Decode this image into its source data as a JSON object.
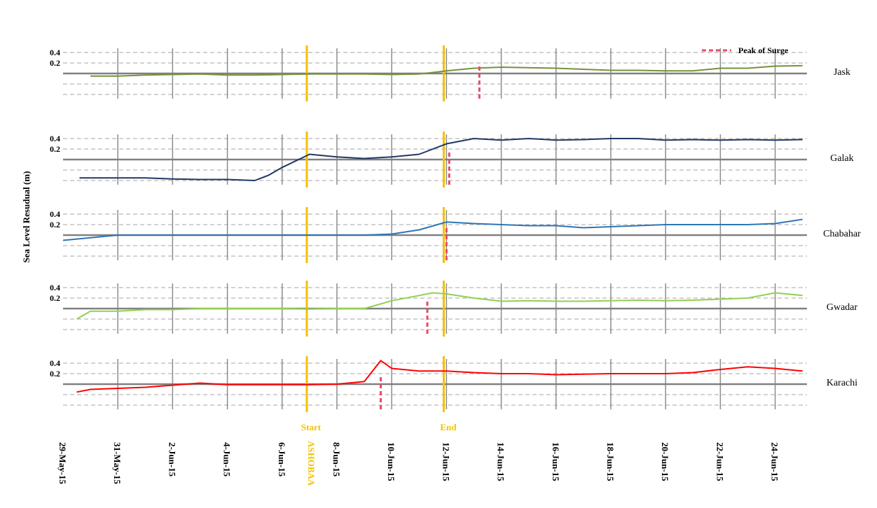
{
  "chart_data": {
    "type": "line",
    "title": "",
    "ylabel": "Sea Level Resudual (m)",
    "xlabel": "",
    "x_tick_labels": [
      "29-May-15",
      "31-May-15",
      "2-Jun-15",
      "4-Jun-15",
      "6-Jun-15",
      "8-Jun-15",
      "10-Jun-15",
      "12-Jun-15",
      "14-Jun-15",
      "16-Jun-15",
      "18-Jun-15",
      "20-Jun-15",
      "22-Jun-15",
      "24-Jun-15"
    ],
    "y_tick_labels": [
      "0.4",
      "0.2"
    ],
    "x_range_days": [
      0,
      27
    ],
    "grid": true,
    "legend": {
      "label": "Peak of Surge",
      "placement": "top-right"
    },
    "events": {
      "name": "ASHOBAA",
      "start_label": "Start",
      "end_label": "End",
      "start_day": 8.9,
      "end_day": 13.9
    },
    "series": [
      {
        "name": "Jask",
        "color": "#76923c",
        "peak_day": 15.2,
        "x": [
          1,
          2,
          3,
          4,
          5,
          6,
          7,
          8,
          9,
          10,
          11,
          12,
          13,
          14,
          15,
          16,
          17,
          18,
          19,
          20,
          21,
          22,
          23,
          24,
          25,
          26,
          27
        ],
        "values": [
          -0.05,
          -0.05,
          -0.03,
          -0.02,
          -0.01,
          -0.03,
          -0.03,
          -0.02,
          -0.01,
          -0.01,
          -0.01,
          -0.02,
          -0.01,
          0.05,
          0.1,
          0.12,
          0.11,
          0.1,
          0.08,
          0.06,
          0.06,
          0.05,
          0.05,
          0.1,
          0.1,
          0.14,
          0.15
        ]
      },
      {
        "name": "Galak",
        "color": "#1f3864",
        "peak_day": 14.1,
        "x": [
          0.6,
          2,
          3,
          4,
          5,
          6,
          7,
          7.5,
          8,
          9,
          10,
          11,
          12,
          13,
          13.5,
          14,
          15,
          16,
          17,
          18,
          19,
          20,
          21,
          22,
          23,
          24,
          25,
          26,
          27
        ],
        "values": [
          -0.35,
          -0.35,
          -0.35,
          -0.37,
          -0.38,
          -0.38,
          -0.4,
          -0.3,
          -0.15,
          0.1,
          0.05,
          0.02,
          0.05,
          0.1,
          0.2,
          0.3,
          0.4,
          0.37,
          0.4,
          0.37,
          0.38,
          0.4,
          0.4,
          0.37,
          0.38,
          0.37,
          0.38,
          0.37,
          0.38
        ]
      },
      {
        "name": "Chabahar",
        "color": "#2e75b6",
        "peak_day": 14.0,
        "x": [
          0,
          1,
          2,
          3,
          4,
          5,
          6,
          7,
          8,
          9,
          10,
          11,
          12,
          13,
          14,
          15,
          16,
          17,
          18,
          19,
          20,
          21,
          22,
          23,
          24,
          25,
          26,
          27
        ],
        "values": [
          -0.1,
          -0.05,
          0.0,
          0.0,
          0.0,
          0.0,
          0.0,
          0.0,
          0.0,
          0.0,
          0.0,
          0.0,
          0.02,
          0.1,
          0.25,
          0.22,
          0.2,
          0.18,
          0.18,
          0.14,
          0.16,
          0.18,
          0.2,
          0.2,
          0.2,
          0.2,
          0.22,
          0.3
        ]
      },
      {
        "name": "Gwadar",
        "color": "#92d050",
        "peak_day": 13.3,
        "x": [
          0.5,
          1,
          2,
          3,
          4,
          5,
          6,
          7,
          8,
          9,
          10,
          11,
          12,
          13,
          13.5,
          14,
          15,
          16,
          17,
          18,
          19,
          20,
          21,
          22,
          23,
          24,
          25,
          26,
          27
        ],
        "values": [
          -0.2,
          -0.05,
          -0.05,
          -0.02,
          -0.02,
          0.0,
          0.0,
          0.0,
          0.0,
          -0.01,
          0.0,
          0.0,
          0.15,
          0.25,
          0.3,
          0.28,
          0.2,
          0.14,
          0.15,
          0.14,
          0.14,
          0.15,
          0.16,
          0.15,
          0.16,
          0.18,
          0.2,
          0.3,
          0.25
        ]
      },
      {
        "name": "Karachi",
        "color": "#ff0000",
        "peak_day": 11.6,
        "x": [
          0.5,
          1,
          2,
          3,
          4,
          5,
          6,
          7,
          8,
          9,
          10,
          11,
          11.6,
          12,
          13,
          14,
          15,
          16,
          17,
          18,
          19,
          20,
          21,
          22,
          23,
          24,
          25,
          26,
          27
        ],
        "values": [
          -0.15,
          -0.1,
          -0.08,
          -0.06,
          -0.02,
          0.02,
          -0.01,
          -0.01,
          -0.01,
          -0.01,
          0.0,
          0.05,
          0.45,
          0.3,
          0.25,
          0.25,
          0.22,
          0.2,
          0.2,
          0.18,
          0.19,
          0.2,
          0.2,
          0.2,
          0.22,
          0.28,
          0.33,
          0.3,
          0.25
        ]
      }
    ]
  }
}
